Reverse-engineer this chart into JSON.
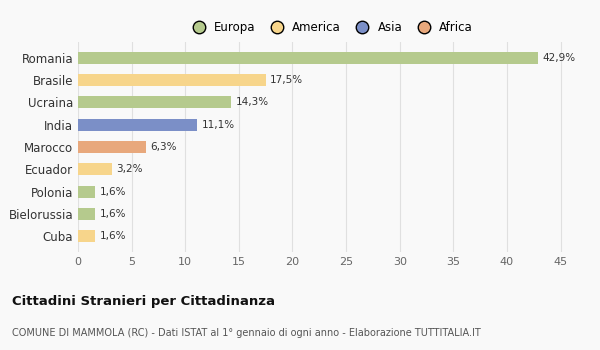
{
  "countries": [
    "Romania",
    "Brasile",
    "Ucraina",
    "India",
    "Marocco",
    "Ecuador",
    "Polonia",
    "Bielorussia",
    "Cuba"
  ],
  "values": [
    42.9,
    17.5,
    14.3,
    11.1,
    6.3,
    3.2,
    1.6,
    1.6,
    1.6
  ],
  "labels": [
    "42,9%",
    "17,5%",
    "14,3%",
    "11,1%",
    "6,3%",
    "3,2%",
    "1,6%",
    "1,6%",
    "1,6%"
  ],
  "categories": [
    "Europa",
    "America",
    "Asia",
    "Africa"
  ],
  "bar_colors": [
    "#b5ca8d",
    "#f7d58b",
    "#b5ca8d",
    "#7b8fc7",
    "#e8a87c",
    "#f7d58b",
    "#b5ca8d",
    "#b5ca8d",
    "#f7d58b"
  ],
  "legend_colors": [
    "#b5ca8d",
    "#f7d58b",
    "#7b8fc7",
    "#e8a87c"
  ],
  "background_color": "#f9f9f9",
  "grid_color": "#e0e0e0",
  "title": "Cittadini Stranieri per Cittadinanza",
  "subtitle": "COMUNE DI MAMMOLA (RC) - Dati ISTAT al 1° gennaio di ogni anno - Elaborazione TUTTITALIA.IT",
  "xlim": [
    0,
    47
  ],
  "xticks": [
    0,
    5,
    10,
    15,
    20,
    25,
    30,
    35,
    40,
    45
  ]
}
